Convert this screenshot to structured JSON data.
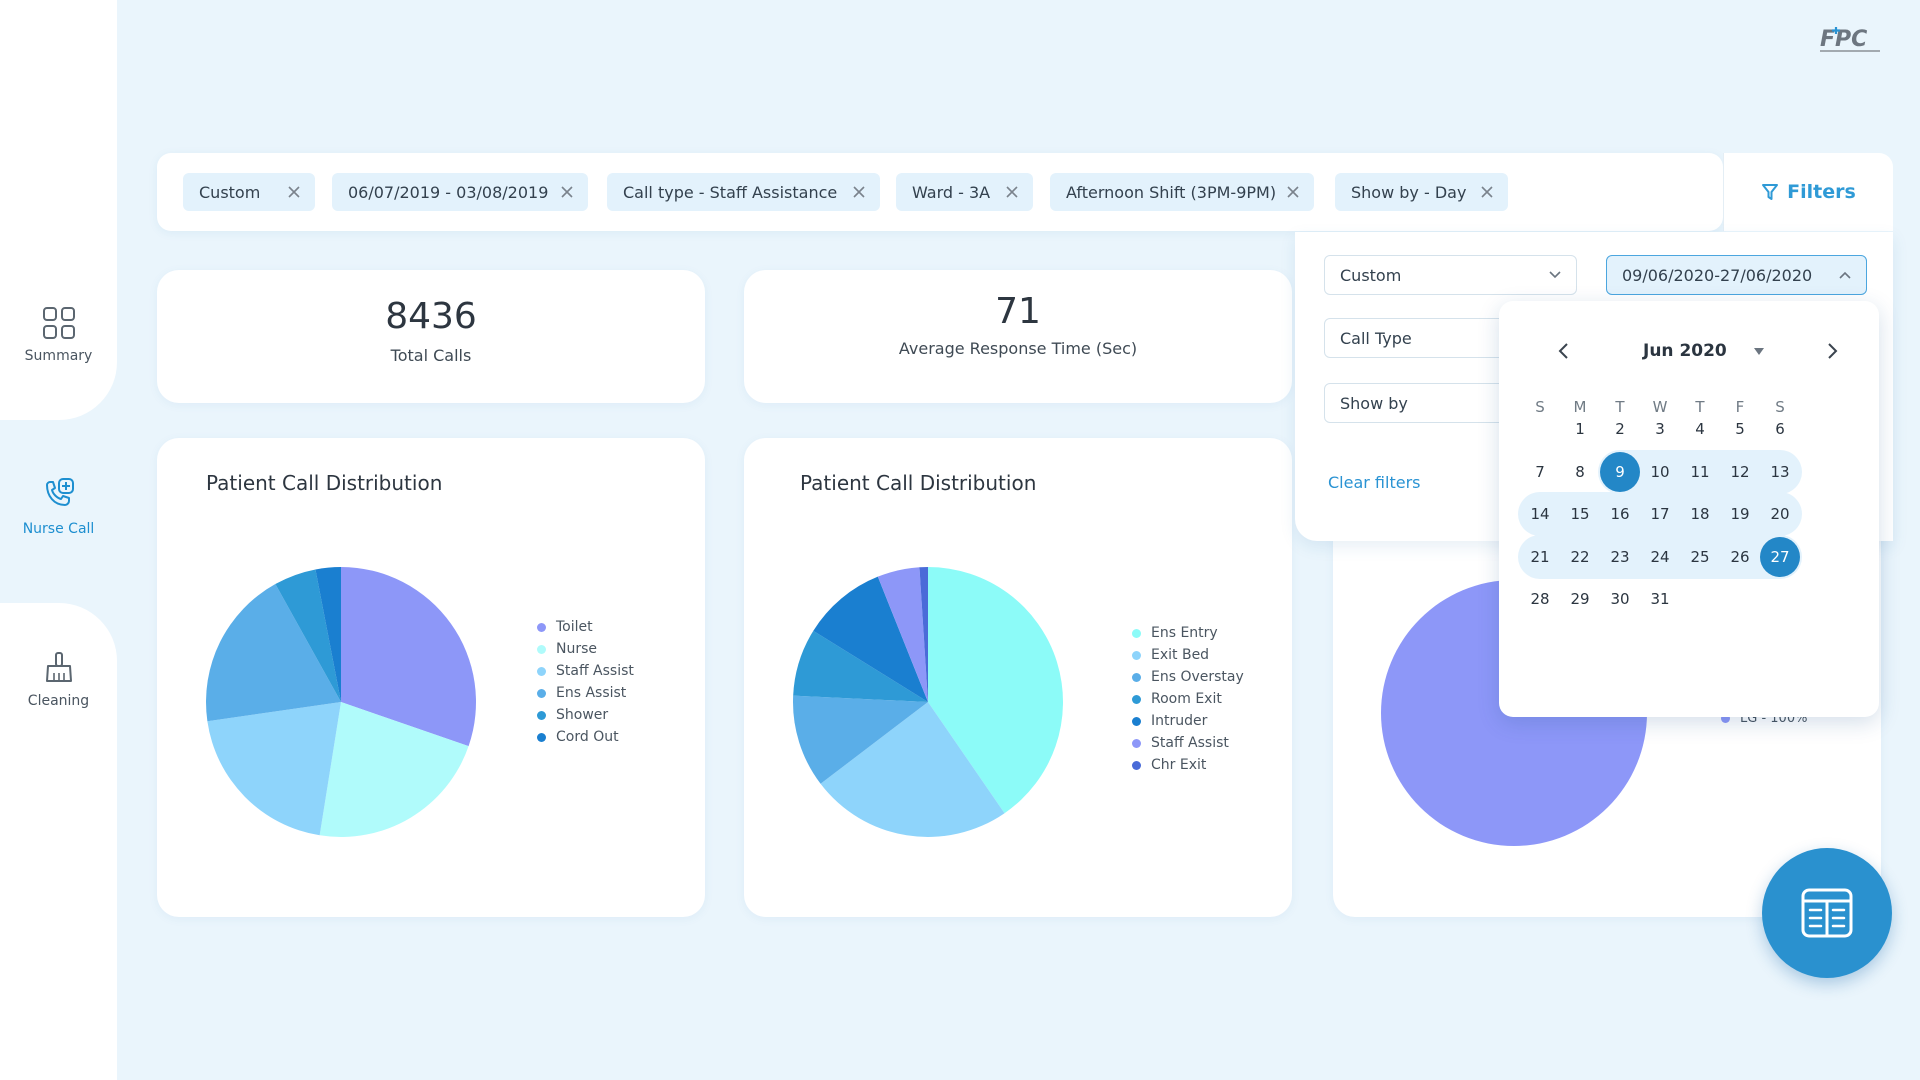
{
  "sidebar": {
    "items": [
      {
        "label": "Summary",
        "icon": "grid-icon"
      },
      {
        "label": "Nurse Call",
        "icon": "phone-plus-icon",
        "active": true
      },
      {
        "label": "Cleaning",
        "icon": "broom-icon"
      }
    ]
  },
  "chips": [
    "Custom",
    "06/07/2019  - 03/08/2019",
    "Call type - Staff Assistance",
    "Ward - 3A",
    "Afternoon Shift (3PM-9PM)",
    "Show by - Day"
  ],
  "filters_label": "Filters",
  "stats": [
    {
      "value": "8436",
      "label": "Total Calls"
    },
    {
      "value": "71",
      "label": "Average Response Time (Sec)"
    }
  ],
  "charts": {
    "chart1_title": "Patient Call Distribution",
    "chart2_title": "Patient Call Distribution",
    "chart3_legend": "LG - 100%"
  },
  "chart_data": [
    {
      "type": "pie",
      "title": "Patient Call Distribution",
      "labels": [
        "Toilet",
        "Nurse",
        "Staff Assist",
        "Ens Assist",
        "Shower",
        "Cord Out"
      ],
      "values": [
        30,
        22,
        20,
        19,
        5,
        3
      ],
      "colors": [
        "#8d97f8",
        "#b0fbfb",
        "#8ed4fb",
        "#5aaee8",
        "#2e9ad6",
        "#1a7fd0"
      ]
    },
    {
      "type": "pie",
      "title": "Patient Call Distribution",
      "labels": [
        "Ens Entry",
        "Exit Bed",
        "Ens Overstay",
        "Room Exit",
        "Intruder",
        "Staff Assist",
        "Chr Exit"
      ],
      "values": [
        40,
        24,
        11,
        8,
        10,
        5,
        1
      ],
      "colors": [
        "#8cfbf8",
        "#8ed4fb",
        "#5aaee8",
        "#2e9ad6",
        "#1a7fd0",
        "#8d97f8",
        "#4a6bd8"
      ]
    },
    {
      "type": "pie",
      "labels": [
        "LG - 100%"
      ],
      "values": [
        100
      ],
      "colors": [
        "#8d97f8"
      ]
    }
  ],
  "filter_panel": {
    "range_select": "Custom",
    "date_range": "09/06/2020-27/06/2020",
    "call_type": "Call Type",
    "show_by": "Show by",
    "clear": "Clear filters"
  },
  "calendar": {
    "month": "Jun 2020",
    "weekdays": [
      "S",
      "M",
      "T",
      "W",
      "T",
      "F",
      "S"
    ],
    "start_day": 9,
    "end_day": 27
  }
}
